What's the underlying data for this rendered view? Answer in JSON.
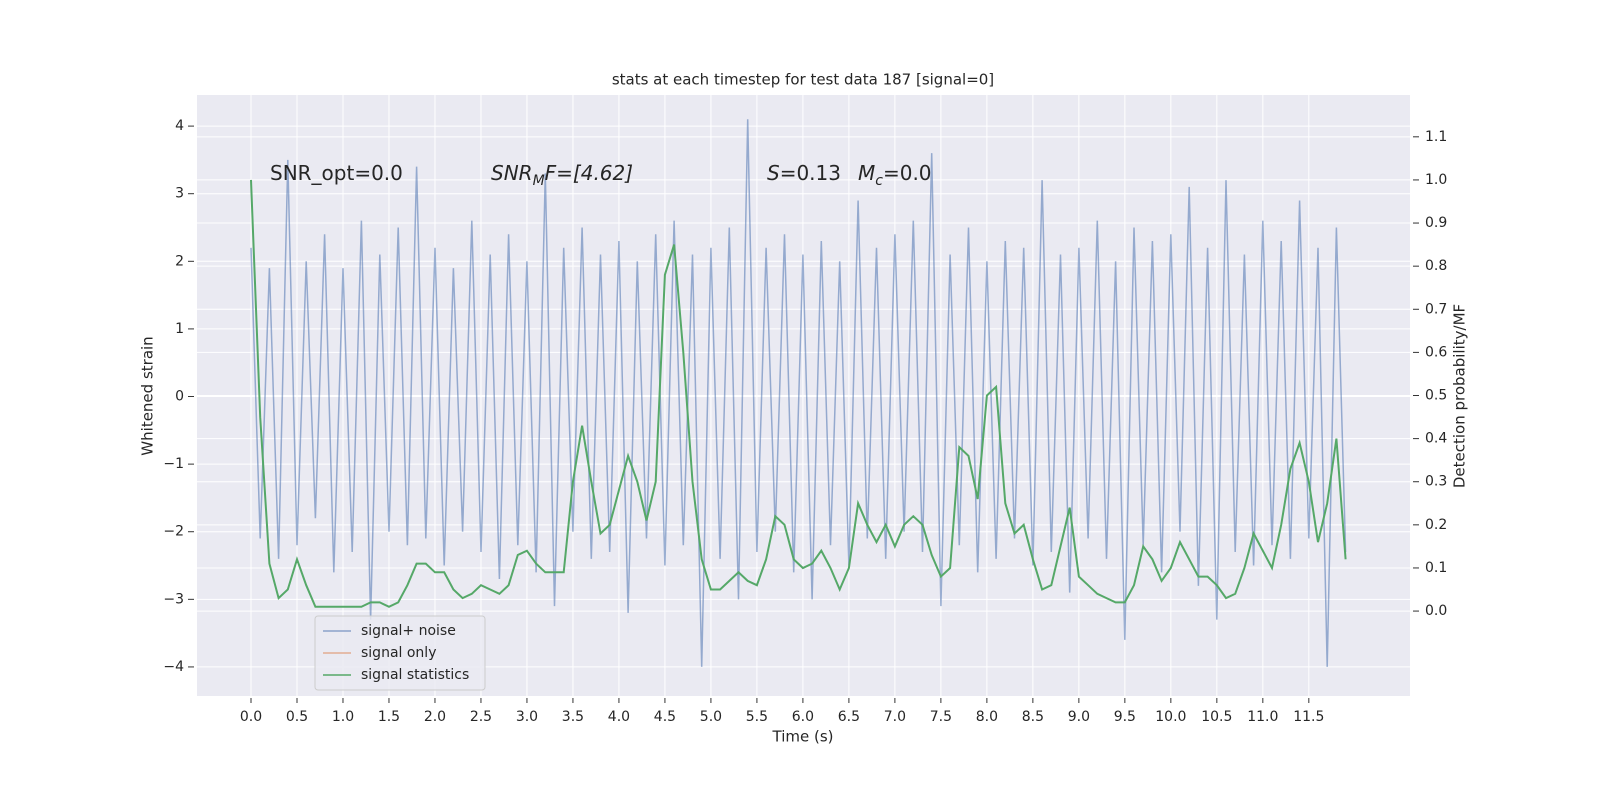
{
  "chart_data": {
    "type": "line",
    "title": "stats at each timestep for test data 187 [signal=0]",
    "xlabel": "Time (s)",
    "ylabel": "Whitened strain",
    "y2label": "Detection probability/MF",
    "annotations": [
      "SNR_opt=0.0",
      [
        "SNR",
        "M",
        "F=[4.62]"
      ],
      [
        "S",
        "=0.13",
        "M",
        "c",
        "=0.0"
      ]
    ],
    "grid": true,
    "legend": "lower left",
    "xlim": [
      -0.587,
      12.6
    ],
    "ylim": [
      -4.43,
      4.46
    ],
    "y2lim": [
      -0.197,
      1.197
    ],
    "xticks": [
      {
        "value": 0,
        "label": "0.0"
      },
      {
        "value": 0.5,
        "label": "0.5"
      },
      {
        "value": 1,
        "label": "1.0"
      },
      {
        "value": 1.5,
        "label": "1.5"
      },
      {
        "value": 2,
        "label": "2.0"
      },
      {
        "value": 2.5,
        "label": "2.5"
      },
      {
        "value": 3,
        "label": "3.0"
      },
      {
        "value": 3.5,
        "label": "3.5"
      },
      {
        "value": 4,
        "label": "4.0"
      },
      {
        "value": 4.5,
        "label": "4.5"
      },
      {
        "value": 5,
        "label": "5.0"
      },
      {
        "value": 5.5,
        "label": "5.5"
      },
      {
        "value": 6,
        "label": "6.0"
      },
      {
        "value": 6.5,
        "label": "6.5"
      },
      {
        "value": 7,
        "label": "7.0"
      },
      {
        "value": 7.5,
        "label": "7.5"
      },
      {
        "value": 8,
        "label": "8.0"
      },
      {
        "value": 8.5,
        "label": "8.5"
      },
      {
        "value": 9,
        "label": "9.0"
      },
      {
        "value": 9.5,
        "label": "9.5"
      },
      {
        "value": 10,
        "label": "10.0"
      },
      {
        "value": 10.5,
        "label": "10.5"
      },
      {
        "value": 11,
        "label": "11.0"
      },
      {
        "value": 11.5,
        "label": "11.5"
      }
    ],
    "yticks": [
      {
        "value": -4,
        "label": "−4"
      },
      {
        "value": -3,
        "label": "−3"
      },
      {
        "value": -2,
        "label": "−2"
      },
      {
        "value": -1,
        "label": "−1"
      },
      0,
      1,
      2,
      3,
      4
    ],
    "y2ticks": [
      {
        "value": 0,
        "label": "0.0"
      },
      {
        "value": 0.1,
        "label": "0.1"
      },
      {
        "value": 0.2,
        "label": "0.2"
      },
      {
        "value": 0.3,
        "label": "0.3"
      },
      {
        "value": 0.4,
        "label": "0.4"
      },
      {
        "value": 0.5,
        "label": "0.5"
      },
      {
        "value": 0.6,
        "label": "0.6"
      },
      {
        "value": 0.7,
        "label": "0.7"
      },
      {
        "value": 0.8,
        "label": "0.8"
      },
      {
        "value": 0.9,
        "label": "0.9"
      },
      {
        "value": 1,
        "label": "1.0"
      },
      {
        "value": 1.1,
        "label": "1.1"
      }
    ],
    "x": [
      0,
      0.1,
      0.2,
      0.3,
      0.4,
      0.5,
      0.6,
      0.7,
      0.8,
      0.9,
      1,
      1.1,
      1.2,
      1.3,
      1.4,
      1.5,
      1.6,
      1.7,
      1.8,
      1.9,
      2,
      2.1,
      2.2,
      2.3,
      2.4,
      2.5,
      2.6,
      2.7,
      2.8,
      2.9,
      3,
      3.1,
      3.2,
      3.3,
      3.4,
      3.5,
      3.6,
      3.7,
      3.8,
      3.9,
      4,
      4.1,
      4.2,
      4.3,
      4.4,
      4.5,
      4.6,
      4.7,
      4.8,
      4.9,
      5,
      5.1,
      5.2,
      5.3,
      5.4,
      5.5,
      5.6,
      5.7,
      5.8,
      5.9,
      6,
      6.1,
      6.2,
      6.3,
      6.4,
      6.5,
      6.6,
      6.7,
      6.8,
      6.9,
      7,
      7.1,
      7.2,
      7.3,
      7.4,
      7.5,
      7.6,
      7.7,
      7.8,
      7.9,
      8,
      8.1,
      8.2,
      8.3,
      8.4,
      8.5,
      8.6,
      8.7,
      8.8,
      8.9,
      9,
      9.1,
      9.2,
      9.3,
      9.4,
      9.5,
      9.6,
      9.7,
      9.8,
      9.9,
      10,
      10.1,
      10.2,
      10.3,
      10.4,
      10.5,
      10.6,
      10.7,
      10.8,
      10.9,
      11,
      11.1,
      11.2,
      11.3,
      11.4,
      11.5,
      11.6,
      11.7,
      11.8,
      11.9
    ],
    "series": [
      {
        "name": "signal+ noise",
        "color": "#4c72b0",
        "values": [
          2.2,
          -2.1,
          1.9,
          -2.4,
          3.5,
          -2.2,
          2.0,
          -1.8,
          2.4,
          -2.6,
          1.9,
          -2.3,
          2.6,
          -3.3,
          2.1,
          -2.0,
          2.5,
          -2.2,
          3.4,
          -2.1,
          2.2,
          -2.5,
          1.9,
          -2.0,
          2.6,
          -2.3,
          2.1,
          -2.7,
          2.4,
          -2.2,
          2.0,
          -2.6,
          3.3,
          -3.1,
          2.2,
          -2.0,
          2.5,
          -2.4,
          2.1,
          -2.3,
          2.3,
          -3.2,
          2.0,
          -2.1,
          2.4,
          -2.5,
          2.6,
          -2.2,
          2.1,
          -4.0,
          2.2,
          -2.4,
          2.5,
          -3.0,
          4.1,
          -2.3,
          2.2,
          -2.0,
          2.4,
          -2.6,
          2.1,
          -3.0,
          2.3,
          -2.2,
          2.0,
          -2.5,
          2.9,
          -2.1,
          2.2,
          -2.4,
          2.4,
          -2.0,
          2.6,
          -2.3,
          3.6,
          -3.1,
          2.1,
          -2.2,
          2.5,
          -2.6,
          2.0,
          -2.4,
          2.3,
          -2.1,
          2.2,
          -2.5,
          3.2,
          -2.3,
          2.1,
          -2.9,
          2.2,
          -2.1,
          2.6,
          -2.4,
          2.0,
          -3.6,
          2.5,
          -2.2,
          2.3,
          -2.6,
          2.4,
          -2.0,
          3.1,
          -2.8,
          2.2,
          -3.3,
          3.2,
          -2.3,
          2.1,
          -2.5,
          2.6,
          -2.2,
          2.3,
          -2.4,
          2.9,
          -2.1,
          2.2,
          -4.0,
          2.5,
          -2.3
        ]
      },
      {
        "name": "signal only",
        "color": "#dd8452",
        "values": [
          null,
          null,
          null,
          null,
          null,
          null,
          null,
          null,
          null,
          null,
          null,
          null,
          null,
          null,
          null,
          null,
          null,
          null,
          null,
          null,
          null,
          null,
          null,
          null,
          null,
          null,
          null,
          null,
          null,
          null,
          null,
          null,
          null,
          null,
          null,
          null,
          null,
          null,
          null,
          null,
          null,
          null,
          null,
          null,
          null,
          null,
          null,
          null,
          null,
          null,
          null,
          null,
          null,
          null,
          null,
          null,
          null,
          null,
          null,
          null,
          null,
          null,
          null,
          null,
          null,
          null,
          null,
          null,
          null,
          null,
          null,
          null,
          null,
          null,
          null,
          null,
          null,
          null,
          null,
          null,
          null,
          null,
          null,
          null,
          null,
          null,
          null,
          null,
          null,
          null,
          null,
          null,
          null,
          null,
          null,
          null,
          null,
          null,
          null,
          null,
          null,
          null,
          null,
          null,
          null,
          null,
          null,
          null,
          null,
          null,
          null,
          null,
          null,
          null,
          null,
          null,
          null,
          null,
          null,
          null
        ]
      },
      {
        "name": "signal statistics",
        "color": "#55a868",
        "axis": "y2",
        "values": [
          1.0,
          0.45,
          0.11,
          0.03,
          0.05,
          0.12,
          0.06,
          0.01,
          0.01,
          0.01,
          0.01,
          0.01,
          0.01,
          0.02,
          0.02,
          0.01,
          0.02,
          0.06,
          0.11,
          0.11,
          0.09,
          0.09,
          0.05,
          0.03,
          0.04,
          0.06,
          0.05,
          0.04,
          0.06,
          0.13,
          0.14,
          0.11,
          0.09,
          0.09,
          0.09,
          0.3,
          0.43,
          0.3,
          0.18,
          0.2,
          0.28,
          0.36,
          0.3,
          0.21,
          0.3,
          0.78,
          0.85,
          0.6,
          0.3,
          0.12,
          0.05,
          0.05,
          0.07,
          0.09,
          0.07,
          0.06,
          0.12,
          0.22,
          0.2,
          0.12,
          0.1,
          0.11,
          0.14,
          0.1,
          0.05,
          0.1,
          0.25,
          0.2,
          0.16,
          0.2,
          0.15,
          0.2,
          0.22,
          0.2,
          0.13,
          0.08,
          0.1,
          0.38,
          0.36,
          0.26,
          0.5,
          0.52,
          0.25,
          0.18,
          0.2,
          0.12,
          0.05,
          0.06,
          0.15,
          0.24,
          0.08,
          0.06,
          0.04,
          0.03,
          0.02,
          0.02,
          0.06,
          0.15,
          0.12,
          0.07,
          0.1,
          0.16,
          0.12,
          0.08,
          0.08,
          0.06,
          0.03,
          0.04,
          0.1,
          0.18,
          0.14,
          0.1,
          0.2,
          0.33,
          0.39,
          0.3,
          0.16,
          0.25,
          0.4,
          0.12
        ]
      }
    ]
  }
}
